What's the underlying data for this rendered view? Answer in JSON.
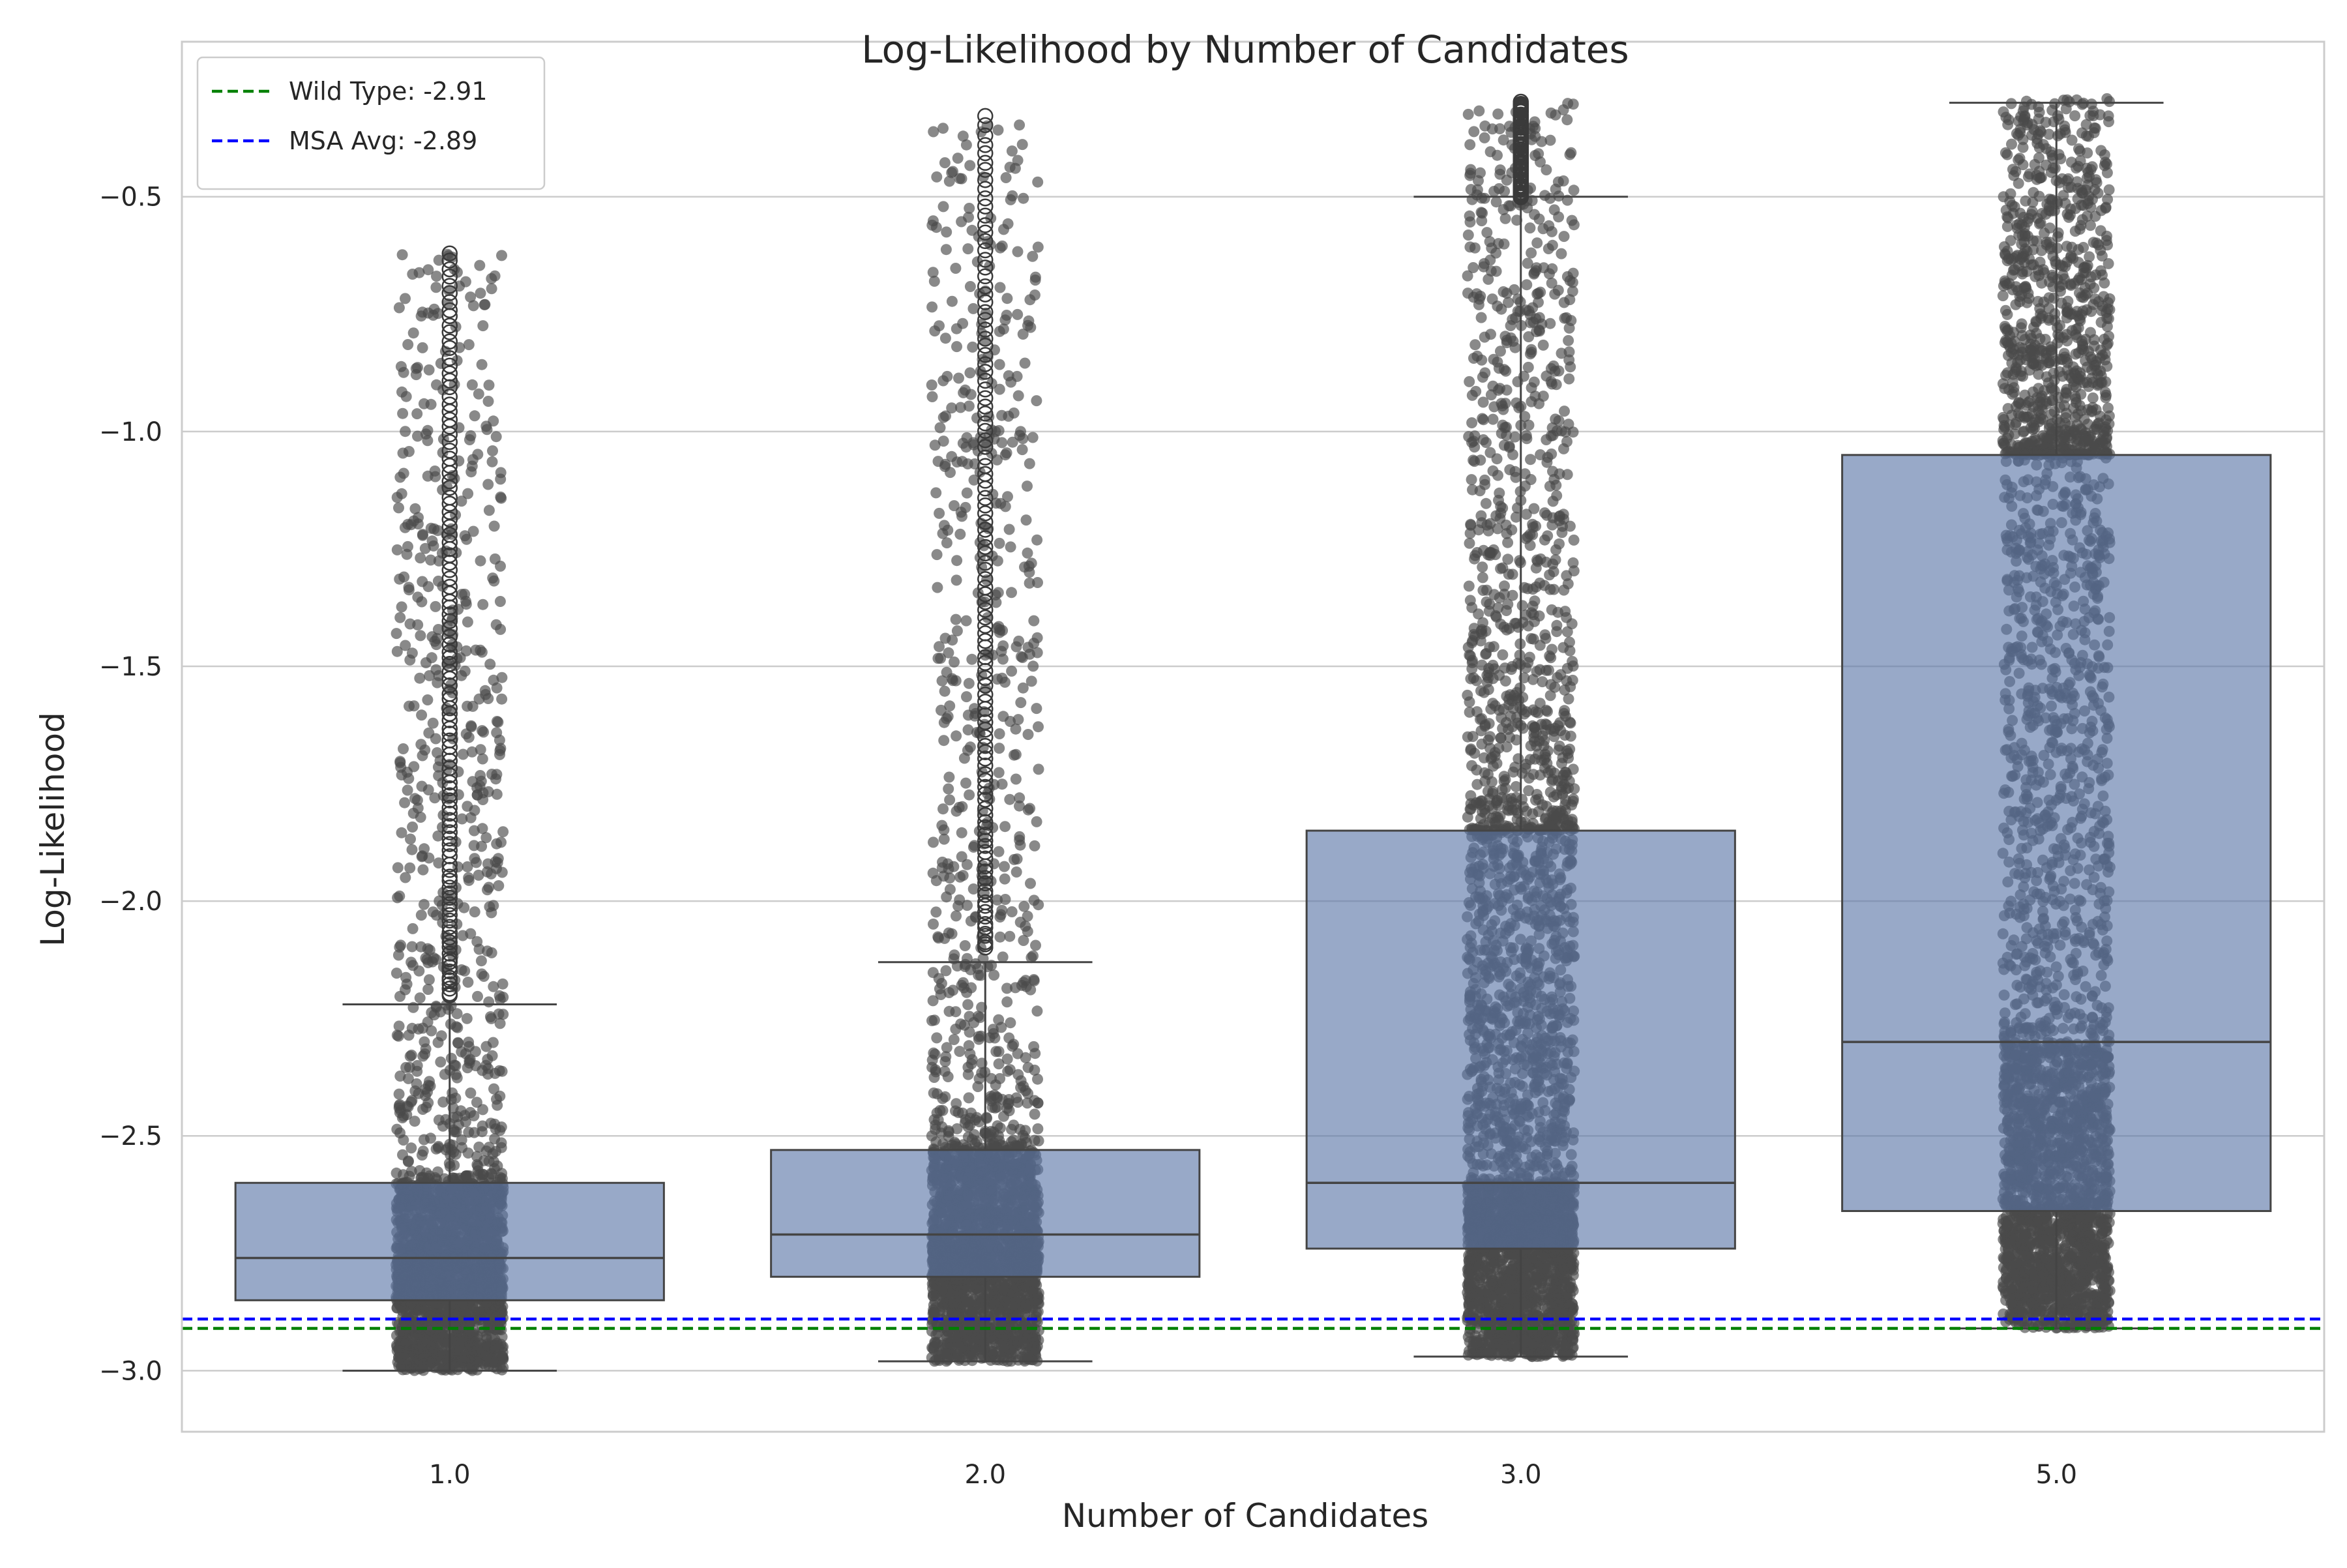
{
  "chart_data": {
    "type": "box",
    "title": "Log-Likelihood by Number of Candidates",
    "xlabel": "Number of Candidates",
    "ylabel": "Log-Likelihood",
    "categories": [
      "1.0",
      "2.0",
      "3.0",
      "5.0"
    ],
    "ylim": [
      -3.13,
      -0.17
    ],
    "yticks": [
      -3.0,
      -2.5,
      -2.0,
      -1.5,
      -1.0,
      -0.5
    ],
    "ytick_labels": [
      "−3.0",
      "−2.5",
      "−2.0",
      "−1.5",
      "−1.0",
      "−0.5"
    ],
    "grid": "horizontal",
    "legend_position": "top-left",
    "boxes": [
      {
        "category": "1.0",
        "whisker_low": -3.0,
        "q1": -2.85,
        "median": -2.76,
        "q3": -2.6,
        "whisker_high": -2.22,
        "jitter_min": -3.0,
        "jitter_max": -0.62,
        "outlier_min": -2.2,
        "outlier_max": -0.62
      },
      {
        "category": "2.0",
        "whisker_low": -2.98,
        "q1": -2.8,
        "median": -2.71,
        "q3": -2.53,
        "whisker_high": -2.13,
        "jitter_min": -2.98,
        "jitter_max": -0.33,
        "outlier_min": -2.1,
        "outlier_max": -0.33
      },
      {
        "category": "3.0",
        "whisker_low": -2.97,
        "q1": -2.74,
        "median": -2.6,
        "q3": -1.85,
        "whisker_high": -0.5,
        "jitter_min": -2.98,
        "jitter_max": -0.3,
        "outlier_min": -0.5,
        "outlier_max": -0.3
      },
      {
        "category": "5.0",
        "whisker_low": -2.91,
        "q1": -2.66,
        "median": -2.3,
        "q3": -1.05,
        "whisker_high": -0.3,
        "jitter_min": -2.92,
        "jitter_max": -0.29,
        "outlier_min": null,
        "outlier_max": null
      }
    ],
    "reference_lines": [
      {
        "label": "Wild Type: -2.91",
        "value": -2.91,
        "color": "#008000"
      },
      {
        "label": "MSA Avg: -2.89",
        "value": -2.89,
        "color": "#0000ff"
      }
    ],
    "box_color": "#5874a6",
    "point_color": "#4a4a4a"
  }
}
